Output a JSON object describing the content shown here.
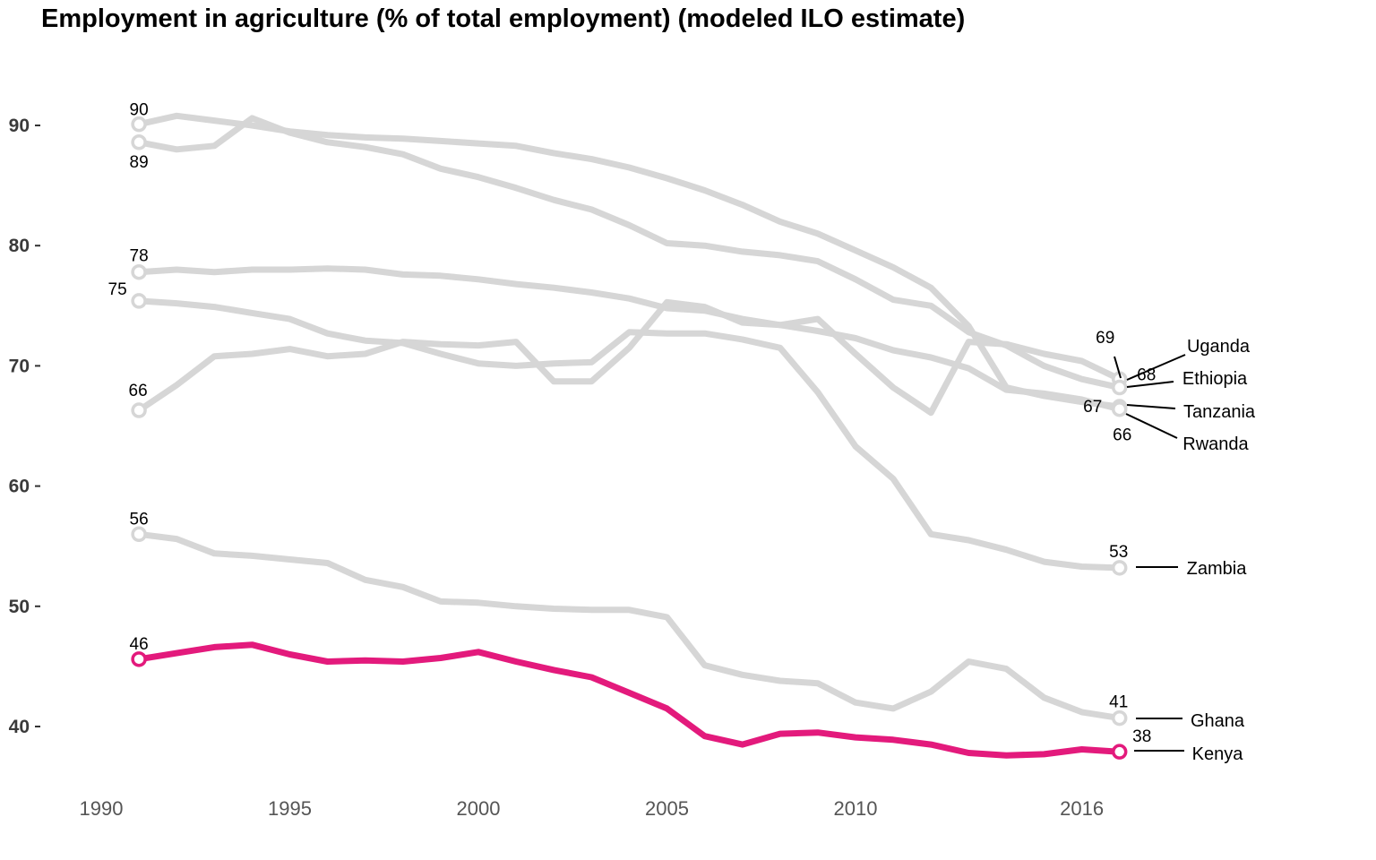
{
  "chart_data": {
    "type": "line",
    "title": "Employment in agriculture (% of total employment) (modeled ILO estimate)",
    "xlabel": "",
    "ylabel": "",
    "xlim": [
      1990,
      2019
    ],
    "ylim": [
      35,
      95
    ],
    "x_ticks": [
      "1990",
      "1995",
      "2000",
      "2005",
      "2010",
      "2016"
    ],
    "y_ticks": [
      "40",
      "50",
      "60",
      "70",
      "80",
      "90"
    ],
    "grid": false,
    "highlight_color": "#e31a7c",
    "muted_color": "#d6d6d6",
    "x": [
      1991,
      1992,
      1993,
      1994,
      1995,
      1996,
      1997,
      1998,
      1999,
      2000,
      2001,
      2002,
      2003,
      2004,
      2005,
      2006,
      2007,
      2008,
      2009,
      2010,
      2011,
      2012,
      2013,
      2014,
      2015,
      2016,
      2017
    ],
    "series": [
      {
        "name": "Uganda",
        "start_label": "66",
        "end_label": "69",
        "highlight": false,
        "values": [
          66.3,
          68.4,
          70.8,
          71.0,
          71.4,
          70.8,
          71.0,
          72.0,
          71.8,
          71.7,
          72.0,
          68.7,
          68.7,
          71.5,
          75.3,
          74.9,
          73.6,
          73.4,
          73.9,
          71.0,
          68.2,
          66.1,
          72.0,
          71.8,
          71.0,
          70.4,
          68.9
        ]
      },
      {
        "name": "Ethiopia",
        "start_label": "89",
        "end_label": "68",
        "highlight": false,
        "values": [
          88.6,
          88.0,
          88.3,
          90.6,
          89.4,
          88.6,
          88.2,
          87.6,
          86.4,
          85.7,
          84.8,
          83.8,
          83.0,
          81.7,
          80.2,
          80.0,
          79.5,
          79.2,
          78.7,
          77.2,
          75.5,
          75.0,
          72.8,
          71.7,
          70.0,
          68.9,
          68.2
        ]
      },
      {
        "name": "Tanzania",
        "start_label": "90",
        "end_label": "67",
        "highlight": false,
        "values": [
          90.1,
          90.8,
          90.4,
          90.0,
          89.5,
          89.2,
          89.0,
          88.9,
          88.7,
          88.5,
          88.3,
          87.7,
          87.2,
          86.5,
          85.6,
          84.6,
          83.4,
          82.0,
          81.0,
          79.6,
          78.2,
          76.5,
          73.3,
          68.2,
          67.5,
          67.0,
          66.6
        ]
      },
      {
        "name": "Rwanda",
        "start_label": "78",
        "end_label": "66",
        "highlight": false,
        "values": [
          77.8,
          78.0,
          77.8,
          78.0,
          78.0,
          78.1,
          78.0,
          77.6,
          77.5,
          77.2,
          76.8,
          76.5,
          76.1,
          75.6,
          74.8,
          74.6,
          73.9,
          73.4,
          72.9,
          72.3,
          71.3,
          70.7,
          69.8,
          68.0,
          67.7,
          67.2,
          66.4
        ]
      },
      {
        "name": "Zambia",
        "start_label": "75",
        "end_label": "53",
        "highlight": false,
        "values": [
          75.4,
          75.2,
          74.9,
          74.4,
          73.9,
          72.7,
          72.1,
          71.9,
          71.0,
          70.2,
          70.0,
          70.2,
          70.3,
          72.8,
          72.7,
          72.7,
          72.2,
          71.5,
          67.8,
          63.3,
          60.6,
          56.0,
          55.5,
          54.7,
          53.7,
          53.3,
          53.2
        ]
      },
      {
        "name": "Ghana",
        "start_label": "56",
        "end_label": "41",
        "highlight": false,
        "values": [
          56.0,
          55.6,
          54.4,
          54.2,
          53.9,
          53.6,
          52.2,
          51.6,
          50.4,
          50.3,
          50.0,
          49.8,
          49.7,
          49.7,
          49.1,
          45.1,
          44.3,
          43.8,
          43.6,
          42.0,
          41.5,
          42.9,
          45.4,
          44.8,
          42.4,
          41.2,
          40.7
        ]
      },
      {
        "name": "Kenya",
        "start_label": "46",
        "end_label": "38",
        "highlight": true,
        "values": [
          45.6,
          46.1,
          46.6,
          46.8,
          46.0,
          45.4,
          45.5,
          45.4,
          45.7,
          46.2,
          45.4,
          44.7,
          44.1,
          42.8,
          41.5,
          39.2,
          38.5,
          39.4,
          39.5,
          39.1,
          38.9,
          38.5,
          37.8,
          37.6,
          37.7,
          38.1,
          37.9
        ]
      }
    ]
  }
}
